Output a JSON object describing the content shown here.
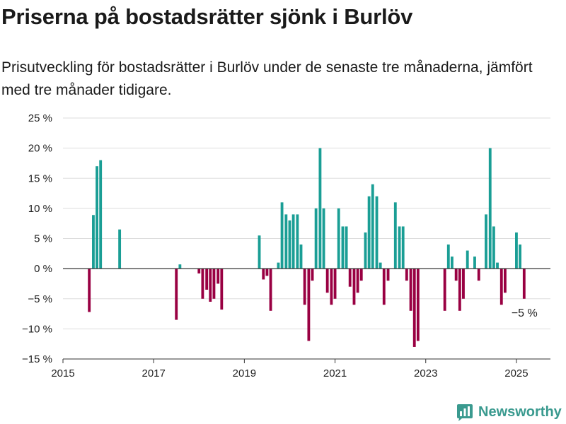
{
  "title": "Priserna på bostadsrätter sjönk i Burlöv",
  "subtitle": "Prisutveckling för bostadsrätter i Burlöv under de senaste tre månaderna, jämfört med tre månader tidigare.",
  "brand": "Newsworthy",
  "colors": {
    "positive": "#1a9e95",
    "negative": "#990042",
    "grid": "#dddddd",
    "zero": "#333333",
    "brand": "#3a9a8f"
  },
  "chart_data": {
    "type": "bar",
    "x_ticks": [
      2015,
      2017,
      2019,
      2021,
      2023,
      2025
    ],
    "x_range": [
      2015.0,
      2025.75
    ],
    "y_ticks": [
      {
        "value": 25,
        "label": "25 %"
      },
      {
        "value": 20,
        "label": "20 %"
      },
      {
        "value": 15,
        "label": "15 %"
      },
      {
        "value": 10,
        "label": "10 %"
      },
      {
        "value": 5,
        "label": "5 %"
      },
      {
        "value": 0,
        "label": "0 %"
      },
      {
        "value": -5,
        "label": "−5 %"
      },
      {
        "value": -10,
        "label": "−10 %"
      },
      {
        "value": -15,
        "label": "−15 %"
      }
    ],
    "ylim": [
      -15,
      25
    ],
    "grid": true,
    "annotation": {
      "text": "−5 %",
      "x": 2025.17,
      "y": -5
    },
    "values": [
      {
        "x": 2015.58,
        "y": -7.2
      },
      {
        "x": 2015.67,
        "y": 8.9
      },
      {
        "x": 2015.75,
        "y": 17.0
      },
      {
        "x": 2015.83,
        "y": 18.0
      },
      {
        "x": 2016.25,
        "y": 6.5
      },
      {
        "x": 2017.5,
        "y": -8.5
      },
      {
        "x": 2017.58,
        "y": 0.7
      },
      {
        "x": 2018.0,
        "y": -0.8
      },
      {
        "x": 2018.08,
        "y": -5.0
      },
      {
        "x": 2018.17,
        "y": -3.5
      },
      {
        "x": 2018.25,
        "y": -5.5
      },
      {
        "x": 2018.33,
        "y": -5.0
      },
      {
        "x": 2018.42,
        "y": -2.5
      },
      {
        "x": 2018.5,
        "y": -6.8
      },
      {
        "x": 2019.33,
        "y": 5.5
      },
      {
        "x": 2019.42,
        "y": -1.8
      },
      {
        "x": 2019.5,
        "y": -1.2
      },
      {
        "x": 2019.58,
        "y": -7.0
      },
      {
        "x": 2019.75,
        "y": 1.0
      },
      {
        "x": 2019.83,
        "y": 11.0
      },
      {
        "x": 2019.92,
        "y": 9.0
      },
      {
        "x": 2020.0,
        "y": 8.0
      },
      {
        "x": 2020.08,
        "y": 9.0
      },
      {
        "x": 2020.17,
        "y": 9.0
      },
      {
        "x": 2020.25,
        "y": 4.0
      },
      {
        "x": 2020.33,
        "y": -6.0
      },
      {
        "x": 2020.42,
        "y": -12.0
      },
      {
        "x": 2020.5,
        "y": -2.0
      },
      {
        "x": 2020.58,
        "y": 10.0
      },
      {
        "x": 2020.67,
        "y": 20.0
      },
      {
        "x": 2020.75,
        "y": 10.0
      },
      {
        "x": 2020.83,
        "y": -4.0
      },
      {
        "x": 2020.92,
        "y": -6.0
      },
      {
        "x": 2021.0,
        "y": -5.0
      },
      {
        "x": 2021.08,
        "y": 10.0
      },
      {
        "x": 2021.17,
        "y": 7.0
      },
      {
        "x": 2021.25,
        "y": 7.0
      },
      {
        "x": 2021.33,
        "y": -3.0
      },
      {
        "x": 2021.42,
        "y": -6.0
      },
      {
        "x": 2021.5,
        "y": -4.0
      },
      {
        "x": 2021.58,
        "y": -2.0
      },
      {
        "x": 2021.67,
        "y": 6.0
      },
      {
        "x": 2021.75,
        "y": 12.0
      },
      {
        "x": 2021.83,
        "y": 14.0
      },
      {
        "x": 2021.92,
        "y": 12.0
      },
      {
        "x": 2022.0,
        "y": 1.0
      },
      {
        "x": 2022.08,
        "y": -6.0
      },
      {
        "x": 2022.17,
        "y": -2.0
      },
      {
        "x": 2022.33,
        "y": 11.0
      },
      {
        "x": 2022.42,
        "y": 7.0
      },
      {
        "x": 2022.5,
        "y": 7.0
      },
      {
        "x": 2022.58,
        "y": -2.0
      },
      {
        "x": 2022.67,
        "y": -7.0
      },
      {
        "x": 2022.75,
        "y": -13.0
      },
      {
        "x": 2022.83,
        "y": -12.0
      },
      {
        "x": 2023.42,
        "y": -7.0
      },
      {
        "x": 2023.5,
        "y": 4.0
      },
      {
        "x": 2023.58,
        "y": 2.0
      },
      {
        "x": 2023.67,
        "y": -2.0
      },
      {
        "x": 2023.75,
        "y": -7.0
      },
      {
        "x": 2023.83,
        "y": -5.0
      },
      {
        "x": 2023.92,
        "y": 3.0
      },
      {
        "x": 2024.08,
        "y": 2.0
      },
      {
        "x": 2024.17,
        "y": -2.0
      },
      {
        "x": 2024.33,
        "y": 9.0
      },
      {
        "x": 2024.42,
        "y": 20.0
      },
      {
        "x": 2024.5,
        "y": 7.0
      },
      {
        "x": 2024.58,
        "y": 1.0
      },
      {
        "x": 2024.67,
        "y": -6.0
      },
      {
        "x": 2024.75,
        "y": -4.0
      },
      {
        "x": 2025.0,
        "y": 6.0
      },
      {
        "x": 2025.08,
        "y": 4.0
      },
      {
        "x": 2025.17,
        "y": -5.0
      }
    ]
  }
}
